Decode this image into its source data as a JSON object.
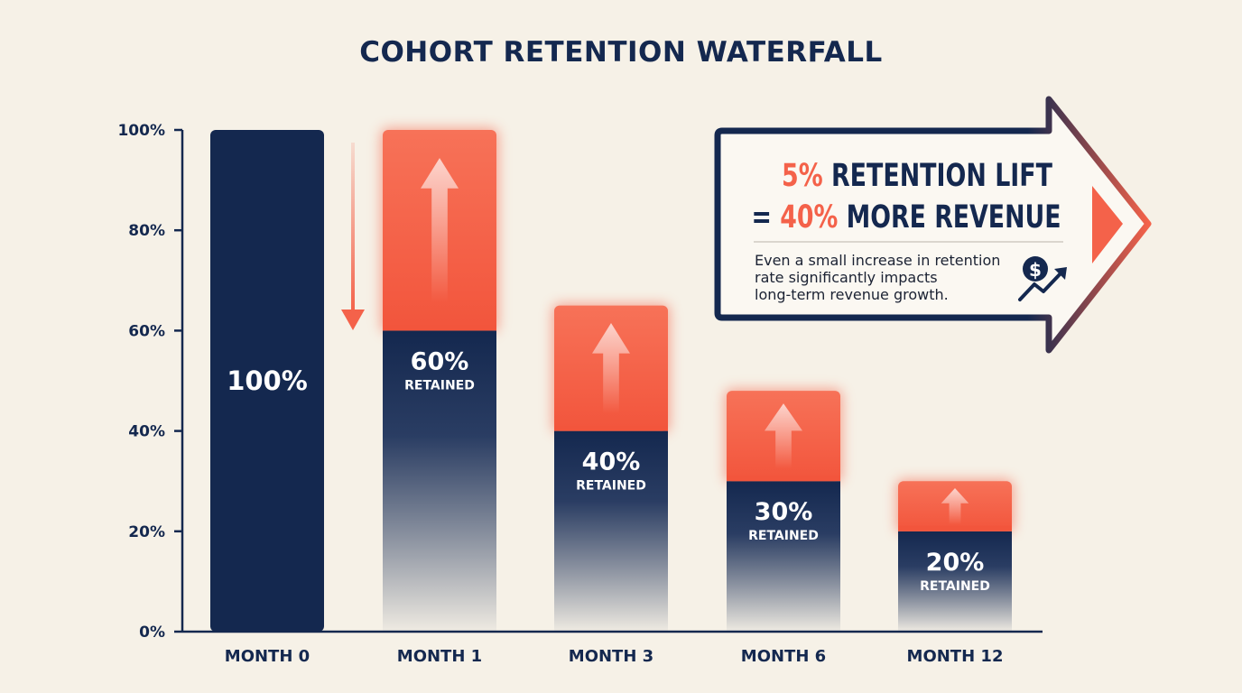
{
  "colors": {
    "navy": "#14284f",
    "coral": "#f4624a",
    "background": "#f6f1e7",
    "white": "#ffffff"
  },
  "chart_data": {
    "type": "bar",
    "title": "COHORT RETENTION WATERFALL",
    "xlabel": "",
    "ylabel": "",
    "ylim": [
      0,
      100
    ],
    "y_ticks": [
      "0%",
      "20%",
      "40%",
      "60%",
      "80%",
      "100%"
    ],
    "categories": [
      "MONTH 0",
      "MONTH 1",
      "MONTH 3",
      "MONTH 6",
      "MONTH 12"
    ],
    "retained": [
      100,
      60,
      40,
      30,
      20
    ],
    "lift_top": [
      null,
      100,
      65,
      48,
      30
    ],
    "value_labels": [
      "100%",
      "60%",
      "40%",
      "30%",
      "20%"
    ],
    "sub_labels": [
      "",
      "RETAINED",
      "RETAINED",
      "RETAINED",
      "RETAINED"
    ],
    "grid": false
  },
  "callout": {
    "line1_highlight": "5%",
    "line1_rest": " RETENTION LIFT",
    "line2_prefix": "= ",
    "line2_highlight": "40%",
    "line2_rest": " MORE REVENUE",
    "body_lines": [
      "Even a small increase in retention",
      "rate significantly impacts",
      "long-term revenue growth."
    ],
    "icon": "dollar-growth-icon"
  }
}
